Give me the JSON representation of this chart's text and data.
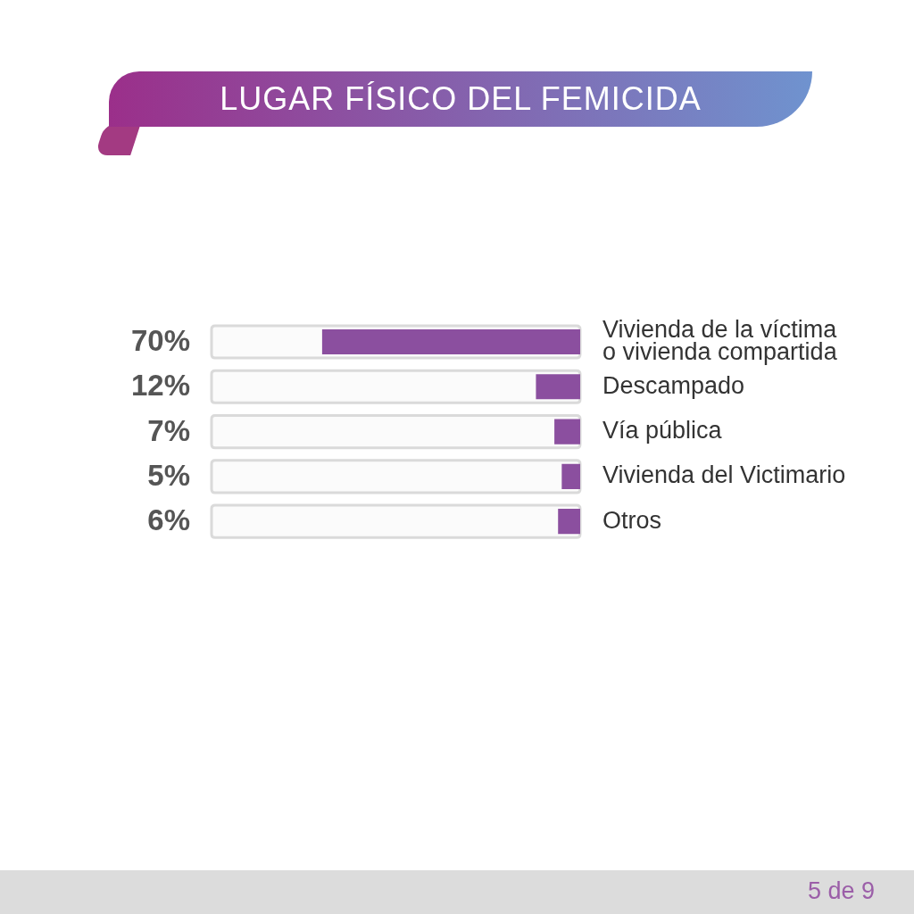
{
  "chart_data": {
    "type": "bar",
    "orientation": "horizontal",
    "title": "LUGAR FÍSICO DEL FEMICIDA",
    "categories": [
      "Vivienda de la víctima o vivienda compartida",
      "Descampado",
      "Vía pública",
      "Vivienda del Victimario",
      "Otros"
    ],
    "values": [
      70,
      12,
      7,
      5,
      6
    ],
    "value_labels": [
      "70%",
      "12%",
      "7%",
      "5%",
      "6%"
    ],
    "color": "#8b4f9f",
    "xlim": [
      100,
      0
    ],
    "tick_labels": "y",
    "annotations": [
      "5 de 9"
    ]
  }
}
